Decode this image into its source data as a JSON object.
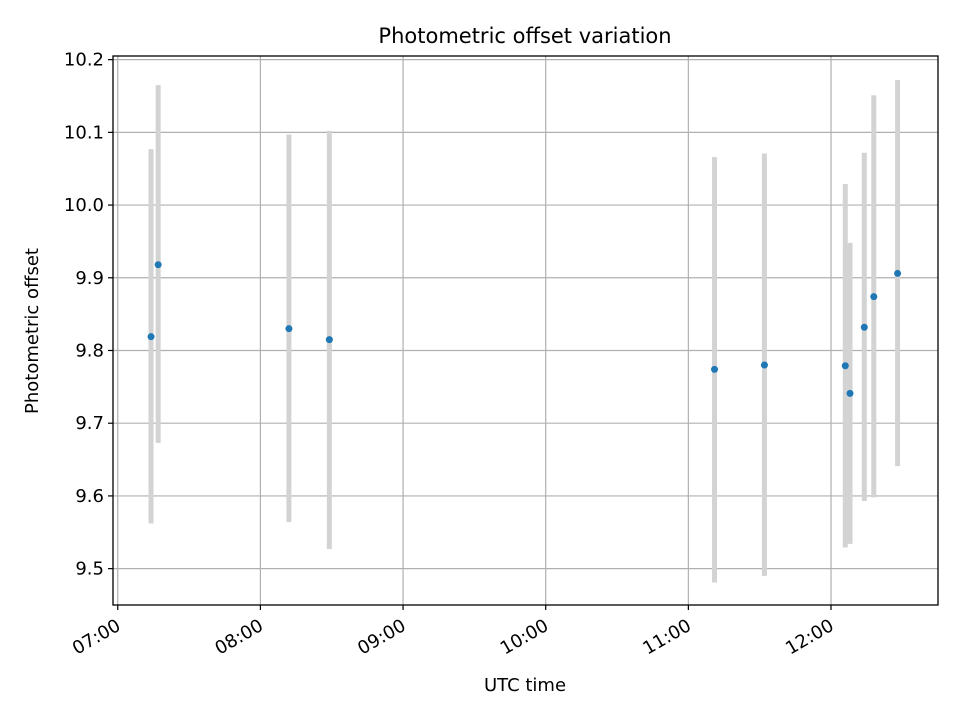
{
  "chart_data": {
    "type": "scatter",
    "title": "Photometric offset variation",
    "xlabel": "UTC time",
    "ylabel": "Photometric offset",
    "x_is_time": true,
    "xlim": [
      "06:58",
      "12:45"
    ],
    "ylim": [
      9.45,
      10.205
    ],
    "x_ticks": [
      "07:00",
      "08:00",
      "09:00",
      "10:00",
      "11:00",
      "12:00"
    ],
    "y_ticks": [
      9.5,
      9.6,
      9.7,
      9.8,
      9.9,
      10.0,
      10.1,
      10.2
    ],
    "y_tick_labels": [
      "9.5",
      "9.6",
      "9.7",
      "9.8",
      "9.9",
      "10.0",
      "10.1",
      "10.2"
    ],
    "grid": true,
    "point_color": "#1f77b4",
    "errorbar_color": "#d3d3d3",
    "points": [
      {
        "time": "07:14",
        "y": 9.819,
        "ylow": 9.562,
        "yhigh": 10.077
      },
      {
        "time": "07:17",
        "y": 9.918,
        "ylow": 9.673,
        "yhigh": 10.165
      },
      {
        "time": "08:12",
        "y": 9.83,
        "ylow": 9.564,
        "yhigh": 10.097
      },
      {
        "time": "08:29",
        "y": 9.815,
        "ylow": 9.527,
        "yhigh": 10.102
      },
      {
        "time": "11:11",
        "y": 9.774,
        "ylow": 9.481,
        "yhigh": 10.066
      },
      {
        "time": "11:32",
        "y": 9.78,
        "ylow": 9.49,
        "yhigh": 10.071
      },
      {
        "time": "12:06",
        "y": 9.779,
        "ylow": 9.529,
        "yhigh": 10.029
      },
      {
        "time": "12:08",
        "y": 9.741,
        "ylow": 9.534,
        "yhigh": 9.948
      },
      {
        "time": "12:14",
        "y": 9.832,
        "ylow": 9.593,
        "yhigh": 10.072
      },
      {
        "time": "12:18",
        "y": 9.874,
        "ylow": 9.598,
        "yhigh": 10.151
      },
      {
        "time": "12:28",
        "y": 9.906,
        "ylow": 9.641,
        "yhigh": 10.172
      }
    ]
  }
}
